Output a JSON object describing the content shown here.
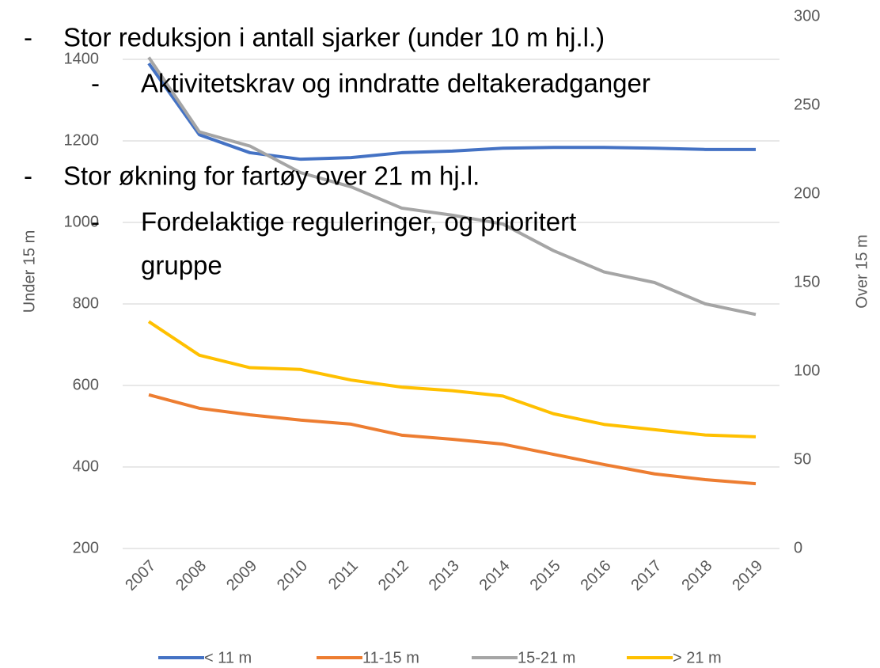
{
  "chart_data": {
    "type": "line",
    "x": [
      "2007",
      "2008",
      "2009",
      "2010",
      "2011",
      "2012",
      "2013",
      "2014",
      "2015",
      "2016",
      "2017",
      "2018",
      "2019"
    ],
    "ylabel": "Under 15 m",
    "y2label": "Over 15 m",
    "ylim": [
      200,
      1400
    ],
    "yticks": [
      200,
      400,
      600,
      800,
      1000,
      1200,
      1400
    ],
    "y2lim": [
      0,
      300
    ],
    "y2ticks": [
      0,
      50,
      100,
      150,
      200,
      250,
      300
    ],
    "grid": true,
    "legend": "bottom",
    "series": [
      {
        "name": "< 11 m",
        "color": "#4472c4",
        "values": [
          1390,
          1215,
          1171,
          1155,
          1159,
          1171,
          1175,
          1182,
          1184,
          1184,
          1182,
          1179,
          1179
        ]
      },
      {
        "name": "11-15 m",
        "color": "#ed7d31",
        "values": [
          577,
          544,
          528,
          515,
          505,
          478,
          468,
          456,
          431,
          406,
          383,
          369,
          359
        ]
      },
      {
        "name": "15-21 m",
        "color": "#a5a5a5",
        "axis": "y2",
        "values": [
          277,
          235,
          227,
          212,
          204,
          192,
          188,
          183,
          168,
          156,
          150,
          138,
          132
        ]
      },
      {
        "name": "> 21 m",
        "color": "#ffc000",
        "axis": "y2",
        "values": [
          128,
          109,
          102,
          101,
          95,
          91,
          89,
          86,
          76,
          70,
          67,
          64,
          63
        ]
      }
    ]
  },
  "bullets": [
    {
      "dash": "-",
      "text": "Stor reduksjon i antall sjarker (under 10 m hj.l.)",
      "sub": [
        {
          "dash": "-",
          "lines": [
            "Aktivitetskrav og inndratte deltakeradganger"
          ]
        }
      ]
    },
    {
      "dash": "-",
      "text": "Stor økning for fartøy over 21 m hj.l.",
      "sub": [
        {
          "dash": "-",
          "lines": [
            "Fordelaktige reguleringer, og prioritert",
            "gruppe"
          ]
        }
      ]
    }
  ]
}
